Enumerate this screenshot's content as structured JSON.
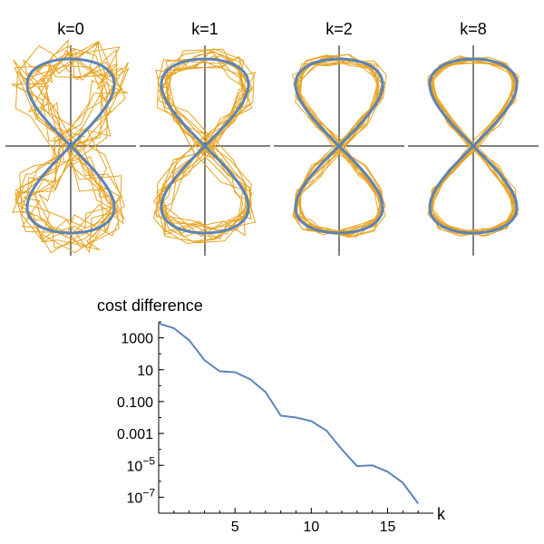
{
  "chart_data": [
    {
      "type": "line",
      "panels": [
        {
          "title": "k=0",
          "spread": 0.4,
          "seed": 11
        },
        {
          "title": "k=1",
          "spread": 0.22,
          "seed": 23
        },
        {
          "title": "k=2",
          "spread": 0.12,
          "seed": 37
        },
        {
          "title": "k=8",
          "spread": 0.08,
          "seed": 51
        }
      ],
      "reference_color": "#5b84b8",
      "trajectory_color": "#e8a321",
      "trajectories_per_panel": 12
    },
    {
      "type": "line",
      "title": "",
      "ylabel": "cost difference",
      "xlabel": "k",
      "y_scale": "log",
      "x": [
        0,
        1,
        2,
        3,
        4,
        5,
        6,
        7,
        8,
        9,
        10,
        11,
        12,
        13,
        14,
        15,
        16,
        17
      ],
      "y": [
        8000,
        4000,
        700,
        40,
        8,
        7,
        2.5,
        0.4,
        0.013,
        0.01,
        0.006,
        0.0015,
        0.0001,
        9e-06,
        1e-05,
        4e-06,
        8e-07,
        4e-08
      ],
      "xlim": [
        0,
        18
      ],
      "ylim_log10": [
        -8,
        4
      ],
      "x_ticks": [
        {
          "value": 5,
          "label": "5"
        },
        {
          "value": 10,
          "label": "10"
        },
        {
          "value": 15,
          "label": "15"
        }
      ],
      "y_ticks": [
        {
          "exp": 3,
          "label": "1000",
          "sup": ""
        },
        {
          "exp": 1,
          "label": "10",
          "sup": ""
        },
        {
          "exp": -1,
          "label": "0.100",
          "sup": ""
        },
        {
          "exp": -3,
          "label": "0.001",
          "sup": ""
        },
        {
          "exp": -5,
          "label": "10",
          "sup": "−5"
        },
        {
          "exp": -7,
          "label": "10",
          "sup": "−7"
        }
      ],
      "line_color": "#5b84b8"
    }
  ]
}
